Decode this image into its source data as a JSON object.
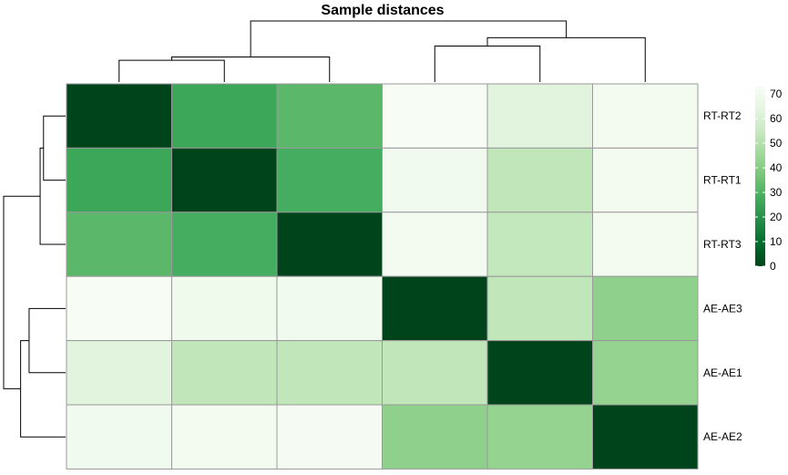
{
  "chart_data": {
    "type": "heatmap",
    "title": "Sample distances",
    "row_labels": [
      "RT-RT2",
      "RT-RT1",
      "RT-RT3",
      "AE-AE3",
      "AE-AE1",
      "AE-AE2"
    ],
    "column_labels": [],
    "values": [
      [
        0,
        26,
        32,
        73,
        63,
        71
      ],
      [
        26,
        0,
        28,
        70,
        53,
        71
      ],
      [
        32,
        28,
        0,
        71,
        54,
        71
      ],
      [
        73,
        69,
        70,
        0,
        53,
        42
      ],
      [
        63,
        53,
        53,
        53,
        0,
        43
      ],
      [
        70,
        71,
        72,
        42,
        43,
        0
      ]
    ],
    "color_scale": {
      "min": 0,
      "max": 73,
      "stops": [
        "#00441B",
        "#006D2C",
        "#238B45",
        "#41AB5D",
        "#74C476",
        "#A1D99B",
        "#C7E9C0",
        "#E5F5E0",
        "#F7FCF5"
      ]
    },
    "legend": {
      "ticks": [
        "0",
        "10",
        "20",
        "30",
        "40",
        "50",
        "60",
        "70"
      ],
      "tick_values": [
        0,
        10,
        20,
        30,
        40,
        50,
        60,
        70
      ],
      "placement": "right"
    },
    "dendrogram": {
      "clusters": [
        [
          0,
          1
        ],
        [
          6,
          2
        ],
        [
          3,
          4
        ],
        [
          8,
          5
        ],
        [
          7,
          9
        ]
      ],
      "heights": [
        26,
        30,
        43,
        53,
        73
      ]
    },
    "grid_color": "#999999",
    "branch_color": "#000000"
  }
}
